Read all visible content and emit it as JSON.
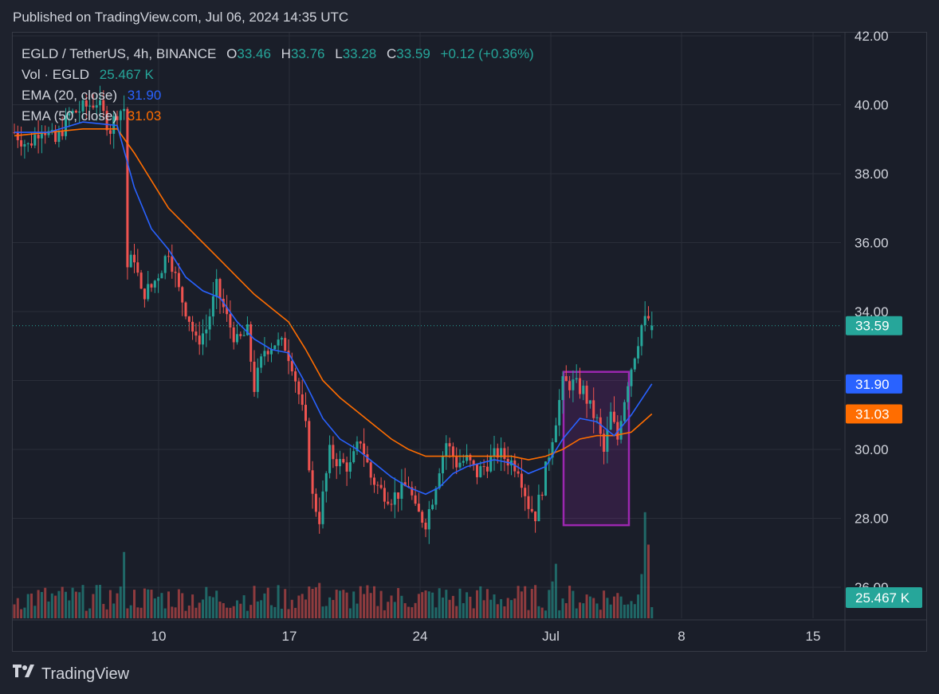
{
  "header": {
    "published": "Published on TradingView.com, Jul 06, 2024 14:35 UTC"
  },
  "legend": {
    "symbol": "EGLD / TetherUS, 4h, BINANCE",
    "o_label": "O",
    "o": "33.46",
    "h_label": "H",
    "h": "33.76",
    "l_label": "L",
    "l": "33.28",
    "c_label": "C",
    "c": "33.59",
    "change": "+0.12 (+0.36%)",
    "vol_label": "Vol · EGLD",
    "vol": "25.467 K",
    "ema20_label": "EMA (20, close)",
    "ema20": "31.90",
    "ema50_label": "EMA (50, close)",
    "ema50": "31.03"
  },
  "footer": {
    "brand": "TradingView"
  },
  "colors": {
    "up": "#26a69a",
    "down": "#ef5350",
    "ema20": "#2962ff",
    "ema50": "#ff6d00",
    "box": "#9c27b0",
    "grid": "#2a2e39",
    "text": "#d1d4dc"
  },
  "chart_data": {
    "type": "candlestick",
    "price_axis": {
      "ticks": [
        28,
        30,
        34,
        36,
        38,
        40,
        42
      ],
      "tick_labels": [
        "28.00",
        "30.00",
        "34.00",
        "36.00",
        "38.00",
        "40.00",
        "42.00"
      ],
      "range": [
        25.1,
        42.1
      ]
    },
    "partial_tick_label": "26.00",
    "x_axis": {
      "ticks": [
        "10",
        "17",
        "24",
        "Jul",
        "8",
        "15"
      ]
    },
    "price_badges": [
      {
        "label": "33.59",
        "value": 33.59,
        "color": "#26a69a"
      },
      {
        "label": "31.90",
        "value": 31.9,
        "color": "#2962ff"
      },
      {
        "label": "31.03",
        "value": 31.03,
        "color": "#ff6d00"
      }
    ],
    "volume_badge": "25.467 K",
    "highlight_box": {
      "price_top": 32.25,
      "price_bottom": 27.8
    },
    "close_path": [
      [
        0,
        39.2
      ],
      [
        4,
        38.8
      ],
      [
        8,
        39.4
      ],
      [
        12,
        38.9
      ],
      [
        16,
        39.7
      ],
      [
        20,
        39.9
      ],
      [
        24,
        40.1
      ],
      [
        28,
        39.3
      ],
      [
        30,
        39.8
      ],
      [
        32,
        39.9
      ],
      [
        33,
        35.3
      ],
      [
        35,
        35.6
      ],
      [
        37,
        34.5
      ],
      [
        40,
        34.7
      ],
      [
        43,
        35.3
      ],
      [
        45,
        35.8
      ],
      [
        48,
        34.6
      ],
      [
        51,
        33.8
      ],
      [
        53,
        33.1
      ],
      [
        56,
        33.5
      ],
      [
        59,
        34.7
      ],
      [
        62,
        33.8
      ],
      [
        65,
        33.1
      ],
      [
        68,
        33.4
      ],
      [
        70,
        31.8
      ],
      [
        73,
        32.9
      ],
      [
        76,
        33.1
      ],
      [
        79,
        33.0
      ],
      [
        81,
        32.5
      ],
      [
        83,
        31.6
      ],
      [
        85,
        30.6
      ],
      [
        87,
        28.6
      ],
      [
        89,
        28.0
      ],
      [
        92,
        29.9
      ],
      [
        95,
        29.6
      ],
      [
        98,
        29.5
      ],
      [
        101,
        30.3
      ],
      [
        104,
        29.2
      ],
      [
        107,
        28.8
      ],
      [
        110,
        28.6
      ],
      [
        113,
        28.8
      ],
      [
        115,
        29.0
      ],
      [
        117,
        28.2
      ],
      [
        120,
        27.9
      ],
      [
        122,
        28.6
      ],
      [
        124,
        29.5
      ],
      [
        126,
        30.2
      ],
      [
        129,
        29.6
      ],
      [
        132,
        29.7
      ],
      [
        135,
        29.3
      ],
      [
        138,
        29.6
      ],
      [
        141,
        29.9
      ],
      [
        144,
        29.7
      ],
      [
        147,
        29.5
      ],
      [
        150,
        28.4
      ],
      [
        152,
        28.1
      ],
      [
        154,
        28.9
      ],
      [
        156,
        29.9
      ],
      [
        158,
        30.9
      ],
      [
        160,
        31.9
      ],
      [
        163,
        31.9
      ],
      [
        166,
        31.7
      ],
      [
        168,
        31.2
      ],
      [
        170,
        30.8
      ],
      [
        172,
        29.9
      ],
      [
        174,
        31.0
      ],
      [
        176,
        30.3
      ],
      [
        177,
        31.0
      ],
      [
        179,
        32.0
      ],
      [
        181,
        32.8
      ],
      [
        183,
        33.6
      ],
      [
        185,
        33.8
      ],
      [
        186,
        33.59
      ]
    ],
    "ema20": [
      [
        0,
        39.2
      ],
      [
        10,
        39.2
      ],
      [
        20,
        39.5
      ],
      [
        30,
        39.4
      ],
      [
        35,
        37.6
      ],
      [
        40,
        36.4
      ],
      [
        45,
        35.8
      ],
      [
        50,
        35.0
      ],
      [
        55,
        34.6
      ],
      [
        60,
        34.4
      ],
      [
        65,
        33.7
      ],
      [
        70,
        33.2
      ],
      [
        75,
        32.9
      ],
      [
        80,
        32.8
      ],
      [
        85,
        31.9
      ],
      [
        90,
        30.9
      ],
      [
        95,
        30.3
      ],
      [
        100,
        30.0
      ],
      [
        105,
        29.6
      ],
      [
        110,
        29.2
      ],
      [
        115,
        28.9
      ],
      [
        120,
        28.7
      ],
      [
        124,
        28.9
      ],
      [
        128,
        29.3
      ],
      [
        132,
        29.5
      ],
      [
        136,
        29.6
      ],
      [
        140,
        29.7
      ],
      [
        145,
        29.6
      ],
      [
        150,
        29.3
      ],
      [
        155,
        29.5
      ],
      [
        160,
        30.3
      ],
      [
        165,
        30.9
      ],
      [
        170,
        30.8
      ],
      [
        175,
        30.4
      ],
      [
        180,
        31.0
      ],
      [
        186,
        31.9
      ]
    ],
    "ema50": [
      [
        0,
        39.1
      ],
      [
        10,
        39.2
      ],
      [
        20,
        39.3
      ],
      [
        30,
        39.3
      ],
      [
        35,
        38.6
      ],
      [
        40,
        37.8
      ],
      [
        45,
        37.0
      ],
      [
        50,
        36.5
      ],
      [
        55,
        36.0
      ],
      [
        60,
        35.5
      ],
      [
        65,
        35.0
      ],
      [
        70,
        34.5
      ],
      [
        75,
        34.1
      ],
      [
        80,
        33.7
      ],
      [
        85,
        32.9
      ],
      [
        90,
        32.0
      ],
      [
        95,
        31.5
      ],
      [
        100,
        31.1
      ],
      [
        105,
        30.7
      ],
      [
        110,
        30.3
      ],
      [
        115,
        30.0
      ],
      [
        120,
        29.8
      ],
      [
        124,
        29.8
      ],
      [
        128,
        29.8
      ],
      [
        132,
        29.8
      ],
      [
        136,
        29.8
      ],
      [
        140,
        29.8
      ],
      [
        145,
        29.8
      ],
      [
        150,
        29.7
      ],
      [
        155,
        29.8
      ],
      [
        160,
        30.0
      ],
      [
        165,
        30.3
      ],
      [
        170,
        30.4
      ],
      [
        175,
        30.4
      ],
      [
        180,
        30.5
      ],
      [
        186,
        31.03
      ]
    ],
    "volume_spikes": [
      [
        32,
        0.45
      ],
      [
        87,
        0.2
      ],
      [
        88,
        0.21
      ],
      [
        89,
        0.24
      ],
      [
        157,
        0.25
      ],
      [
        158,
        0.37
      ],
      [
        183,
        0.3
      ],
      [
        184,
        0.72
      ],
      [
        185,
        0.5
      ]
    ]
  }
}
